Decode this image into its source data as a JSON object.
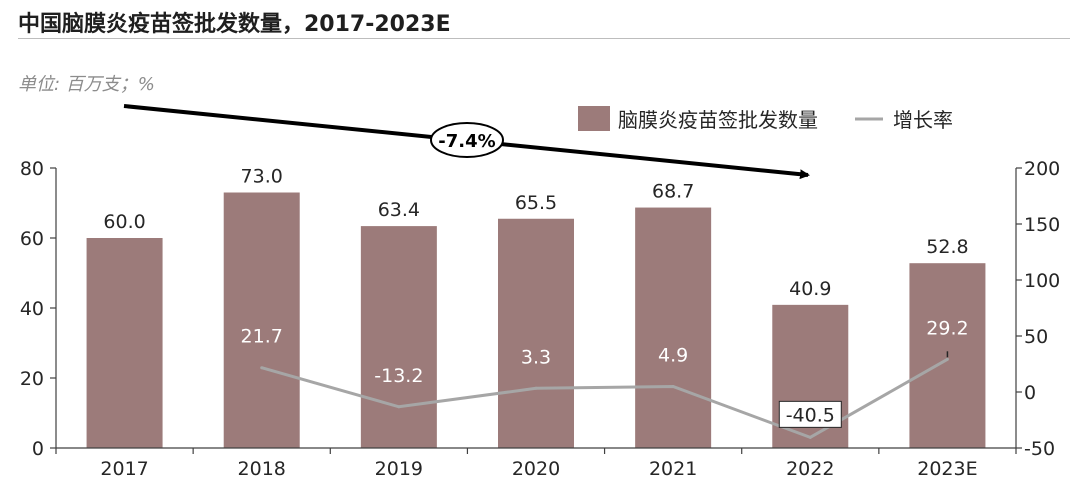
{
  "title": "中国脑膜炎疫苗签批发数量，2017-2023E",
  "unit": "单位:  百万支；%",
  "cagr_label": "-7.4%",
  "colors": {
    "bar": "#9c7b7a",
    "line": "#a6a6a6",
    "axis": "#404040",
    "text": "#262626"
  },
  "chart_data": {
    "type": "bar",
    "categories": [
      "2017",
      "2018",
      "2019",
      "2020",
      "2021",
      "2022",
      "2023E"
    ],
    "series": [
      {
        "name": "脑膜炎疫苗签批发数量",
        "type": "bar",
        "axis": "left",
        "values": [
          60.0,
          73.0,
          63.4,
          65.5,
          68.7,
          40.9,
          52.8
        ],
        "labels": [
          "60.0",
          "73.0",
          "63.4",
          "65.5",
          "68.7",
          "40.9",
          "52.8"
        ]
      },
      {
        "name": "增长率",
        "type": "line",
        "axis": "right",
        "values": [
          null,
          21.7,
          -13.2,
          3.3,
          4.9,
          -40.5,
          29.2
        ],
        "labels": [
          "",
          "21.7",
          "-13.2",
          "3.3",
          "4.9",
          "-40.5",
          "29.2"
        ]
      }
    ],
    "y_left": {
      "min": 0,
      "max": 80,
      "ticks": [
        "0",
        "20",
        "40",
        "60",
        "80"
      ]
    },
    "y_right": {
      "min": -50,
      "max": 200,
      "ticks": [
        "-50",
        "0",
        "50",
        "100",
        "150",
        "200"
      ]
    },
    "legend_position": "top-right",
    "grid": false
  }
}
